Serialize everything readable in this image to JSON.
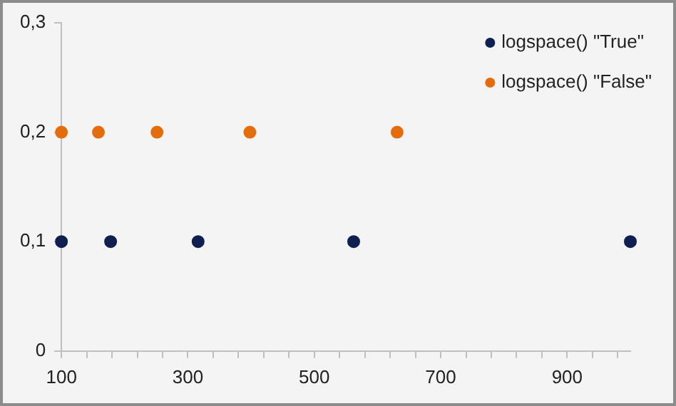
{
  "chart_data": {
    "type": "scatter",
    "series": [
      {
        "name": "logspace() \"True\"",
        "color": "#0f1f4f",
        "x": [
          100,
          177.8,
          316.2,
          562.3,
          1000
        ],
        "values": [
          0.1,
          0.1,
          0.1,
          0.1,
          0.1
        ]
      },
      {
        "name": "logspace() \"False\"",
        "color": "#e46c0a",
        "x": [
          100,
          158.5,
          251.2,
          398.1,
          631
        ],
        "values": [
          0.2,
          0.2,
          0.2,
          0.2,
          0.2
        ]
      }
    ],
    "xlim": [
      100,
      1000
    ],
    "xticks": [
      100,
      {
        "value": 140,
        "label": null
      },
      {
        "value": 180,
        "label": null
      },
      {
        "value": 220,
        "label": null
      },
      {
        "value": 260,
        "label": null
      },
      300,
      {
        "value": 340,
        "label": null
      },
      {
        "value": 380,
        "label": null
      },
      {
        "value": 420,
        "label": null
      },
      {
        "value": 460,
        "label": null
      },
      500,
      {
        "value": 540,
        "label": null
      },
      {
        "value": 580,
        "label": null
      },
      {
        "value": 620,
        "label": null
      },
      {
        "value": 660,
        "label": null
      },
      700,
      {
        "value": 740,
        "label": null
      },
      {
        "value": 780,
        "label": null
      },
      {
        "value": 820,
        "label": null
      },
      {
        "value": 860,
        "label": null
      },
      900,
      {
        "value": 940,
        "label": null
      },
      {
        "value": 980,
        "label": null
      }
    ],
    "ylim": [
      0,
      0.3
    ],
    "yticks": [
      0,
      {
        "value": 0.1,
        "label": "0,1"
      },
      {
        "value": 0.2,
        "label": "0,2"
      },
      {
        "value": 0.3,
        "label": "0,3"
      }
    ],
    "grid": false,
    "legend": "top right",
    "marker": "circle"
  }
}
